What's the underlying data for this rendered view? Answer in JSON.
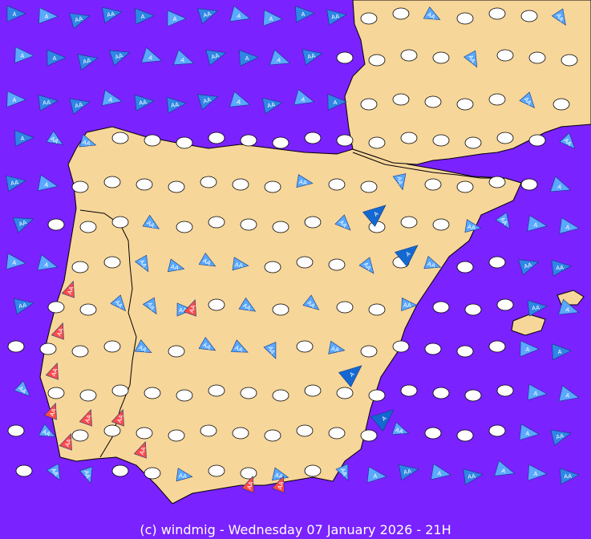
{
  "map": {
    "sea_color": "#7a22ff",
    "land_color": "#f7d69a",
    "border_color": "#000000",
    "calm_marker_color": "#ffffff",
    "wind_marker_label": "A",
    "strong_marker_label": "AA",
    "precip_icon": "raindrop-icon",
    "fog_icon": "fog-icon",
    "wind_colors": {
      "light": "#5aa8ff",
      "moderate": "#2f86e6",
      "strong": "#1468d2",
      "gale": "#ff4a4a"
    }
  },
  "footer": {
    "text": "(c) windmig - Wednesday 07 January 2026 - 21H"
  }
}
